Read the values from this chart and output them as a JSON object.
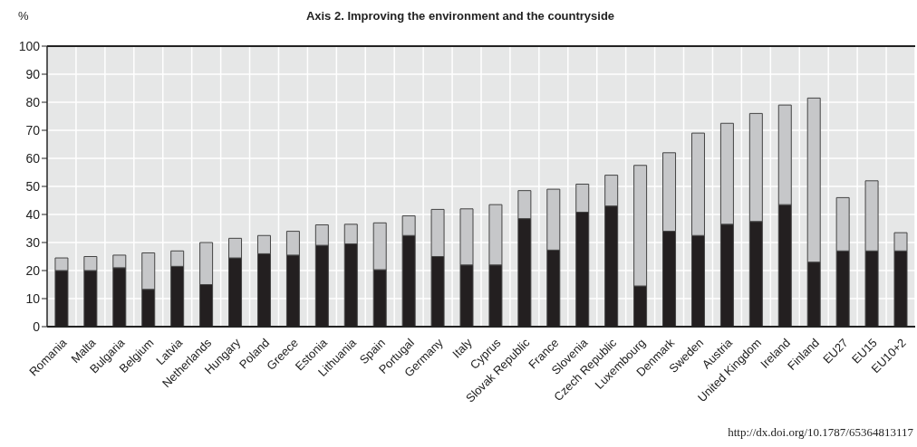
{
  "chart_data": {
    "type": "bar",
    "title": "Axis 2. Improving the environment and the countryside",
    "ylabel": "%",
    "categories": [
      "Romania",
      "Malta",
      "Bulgaria",
      "Belgium",
      "Latvia",
      "Netherlands",
      "Hungary",
      "Poland",
      "Greece",
      "Estonia",
      "Lithuania",
      "Spain",
      "Portugal",
      "Germany",
      "Italy",
      "Cyprus",
      "Slovak Republic",
      "France",
      "Slovenia",
      "Czech Republic",
      "Luxembourg",
      "Denmark",
      "Sweden",
      "Austria",
      "United Kingdom",
      "Ireland",
      "Finland",
      "EU27",
      "EU15",
      "EU10+2"
    ],
    "stacked": true,
    "series": [
      {
        "color": "#231f20",
        "values": [
          20,
          20,
          21,
          13.3,
          21.5,
          15,
          24.5,
          26,
          25.5,
          29,
          29.5,
          20.3,
          32.5,
          25,
          22,
          22,
          38.5,
          27.3,
          40.8,
          43,
          14.5,
          34,
          32.5,
          36.5,
          37.5,
          43.5,
          23,
          27,
          27,
          27
        ]
      },
      {
        "color": "#c6c7c9",
        "values": [
          4.5,
          5,
          4.5,
          13,
          5.5,
          15,
          7,
          6.5,
          8.5,
          7.3,
          7,
          16.7,
          7,
          16.8,
          20,
          21.5,
          10,
          21.7,
          10,
          11,
          43,
          28,
          36.5,
          36,
          38.5,
          35.5,
          58.5,
          19,
          25,
          6.5
        ]
      }
    ],
    "ylim": [
      0,
      100
    ],
    "yticks": [
      0,
      10,
      20,
      30,
      40,
      50,
      60,
      70,
      80,
      90,
      100
    ],
    "grid": true,
    "annotations": [
      "http://dx.doi.org/10.1787/65364813117"
    ]
  }
}
